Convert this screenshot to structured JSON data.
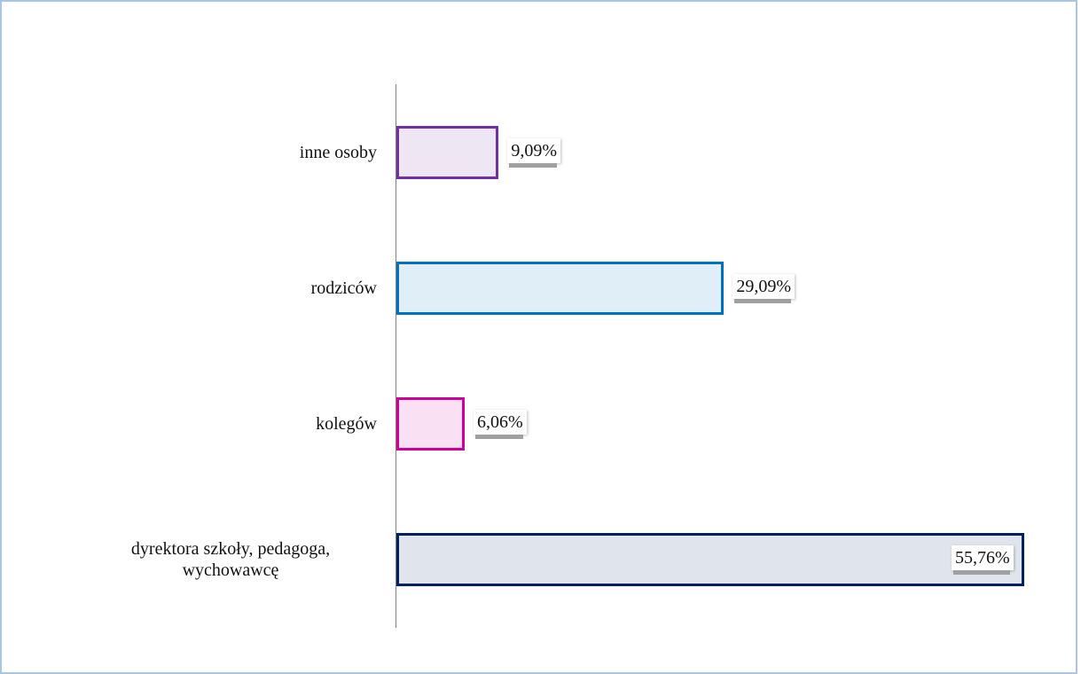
{
  "chart_data": {
    "type": "bar",
    "orientation": "horizontal",
    "categories": [
      "inne osoby",
      "rodziców",
      "kolegów",
      "dyrektora szkoły, pedagoga, wychowawcę"
    ],
    "values": [
      9.09,
      29.09,
      6.06,
      55.76
    ],
    "value_labels": [
      "9,09%",
      "29,09%",
      "6,06%",
      "55,76%"
    ],
    "colors": [
      "#7030a0",
      "#0070c0",
      "#cc0099",
      "#002060"
    ]
  }
}
